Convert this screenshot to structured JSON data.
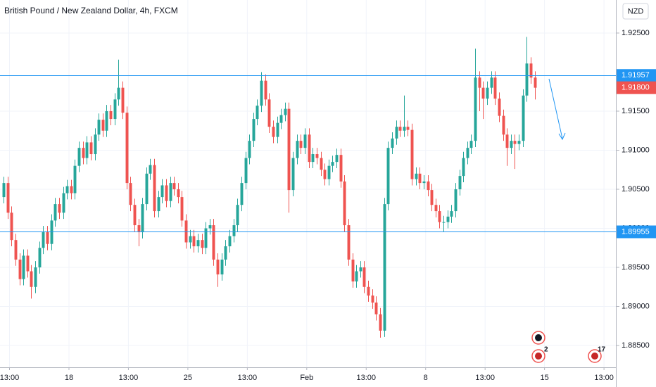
{
  "chart_data": {
    "type": "candlestick",
    "title": "British Pound / New Zealand Dollar, 4h, FXCM",
    "currency": "NZD",
    "up_color": "#26a69a",
    "down_color": "#ef5350",
    "grid": true,
    "ylim": [
      1.88221,
      1.92923
    ],
    "yticks": [
      {
        "value": 1.885,
        "label": "1.88500"
      },
      {
        "value": 1.89,
        "label": "1.89000"
      },
      {
        "value": 1.895,
        "label": "1.89500"
      },
      {
        "value": 1.9,
        "label": "1.90000"
      },
      {
        "value": 1.905,
        "label": "1.90500"
      },
      {
        "value": 1.91,
        "label": "1.91000"
      },
      {
        "value": 1.915,
        "label": "1.91500"
      },
      {
        "value": 1.925,
        "label": "1.92500"
      }
    ],
    "xlim": [
      -0.9,
      154.5
    ],
    "xticks": [
      {
        "value": 1.5,
        "label": "13:00"
      },
      {
        "value": 16.5,
        "label": "18"
      },
      {
        "value": 31.5,
        "label": "13:00"
      },
      {
        "value": 46.5,
        "label": "25"
      },
      {
        "value": 61.5,
        "label": "13:00"
      },
      {
        "value": 76.5,
        "label": "Feb"
      },
      {
        "value": 91.5,
        "label": "13:00"
      },
      {
        "value": 106.5,
        "label": "8"
      },
      {
        "value": 121.5,
        "label": "13:00"
      },
      {
        "value": 136.5,
        "label": "15"
      },
      {
        "value": 151.5,
        "label": "13:00"
      }
    ],
    "levels": [
      {
        "value": 1.91957,
        "label": "1.91957",
        "color": "#2196f3"
      },
      {
        "value": 1.89955,
        "label": "1.89955",
        "color": "#2196f3"
      }
    ],
    "last_price": {
      "value": 1.918,
      "label": "1.91800",
      "color": "#ef5350"
    },
    "events": [
      {
        "label": "2"
      },
      {
        "label": "17"
      }
    ],
    "open": [
      1.904,
      1.9058,
      1.902,
      1.8985,
      1.896,
      1.8935,
      1.8965,
      1.8945,
      1.8925,
      1.895,
      1.8975,
      1.8995,
      1.898,
      1.901,
      1.9031,
      1.902,
      1.9045,
      1.9054,
      1.9045,
      1.908,
      1.9103,
      1.909,
      1.911,
      1.9095,
      1.912,
      1.9139,
      1.9125,
      1.915,
      1.914,
      1.9165,
      1.918,
      1.9148,
      1.9058,
      1.903,
      1.9004,
      1.8995,
      1.9031,
      1.907,
      1.9081,
      1.9022,
      1.904,
      1.9055,
      1.9035,
      1.9058,
      1.905,
      1.904,
      1.901,
      1.8982,
      1.899,
      1.8977,
      1.8985,
      1.8975,
      1.9,
      1.9004,
      1.896,
      1.8941,
      1.896,
      1.8977,
      1.899,
      1.9004,
      1.903,
      1.9058,
      1.909,
      1.9112,
      1.914,
      1.9157,
      1.9189,
      1.9165,
      1.913,
      1.9117,
      1.9135,
      1.9145,
      1.9153,
      1.9049,
      1.909,
      1.9112,
      1.9103,
      1.912,
      1.9085,
      1.9095,
      1.909,
      1.9075,
      1.9063,
      1.908,
      1.9085,
      1.9094,
      1.906,
      1.9004,
      1.896,
      1.8932,
      1.8945,
      1.895,
      1.8925,
      1.8914,
      1.8905,
      1.889,
      1.8869,
      1.9031,
      1.9103,
      1.9115,
      1.913,
      1.9125,
      1.913,
      1.9126,
      1.9063,
      1.907,
      1.9058,
      1.906,
      1.9049,
      1.903,
      1.9022,
      1.9008,
      1.9008,
      1.9015,
      1.9022,
      1.905,
      1.9067,
      1.909,
      1.9103,
      1.9112,
      1.9193,
      1.918,
      1.9166,
      1.918,
      1.9193,
      1.9166,
      1.9144,
      1.912,
      1.9103,
      1.9112,
      1.9108,
      1.9112,
      1.917,
      1.9211,
      1.9193
    ],
    "high": [
      1.9066,
      1.9066,
      1.9028,
      1.8993,
      1.8968,
      1.8973,
      1.8973,
      1.8953,
      1.8958,
      1.8983,
      1.9003,
      1.9003,
      1.9018,
      1.9039,
      1.9039,
      1.9053,
      1.9062,
      1.9062,
      1.9088,
      1.9111,
      1.9111,
      1.9118,
      1.9118,
      1.9128,
      1.9147,
      1.9147,
      1.9158,
      1.9158,
      1.9173,
      1.9216,
      1.9188,
      1.9156,
      1.9066,
      1.9038,
      1.9012,
      1.9039,
      1.9078,
      1.9089,
      1.9089,
      1.9048,
      1.9063,
      1.9063,
      1.9066,
      1.9066,
      1.9058,
      1.9048,
      1.9018,
      1.8998,
      1.8998,
      1.8993,
      1.8993,
      1.9008,
      1.9012,
      1.9012,
      1.8968,
      1.8968,
      1.8985,
      1.8998,
      1.9012,
      1.9038,
      1.9066,
      1.9098,
      1.912,
      1.9148,
      1.9165,
      1.92,
      1.9197,
      1.9173,
      1.9138,
      1.9143,
      1.9153,
      1.9161,
      1.9161,
      1.9098,
      1.912,
      1.912,
      1.9128,
      1.9128,
      1.9103,
      1.9103,
      1.9098,
      1.9083,
      1.9088,
      1.9093,
      1.9102,
      1.9102,
      1.9068,
      1.9012,
      1.8968,
      1.8953,
      1.8958,
      1.8958,
      1.8933,
      1.8922,
      1.8913,
      1.8898,
      1.9039,
      1.9111,
      1.9123,
      1.9138,
      1.9138,
      1.917,
      1.9138,
      1.9134,
      1.9078,
      1.9078,
      1.9068,
      1.9068,
      1.9057,
      1.9038,
      1.903,
      1.9016,
      1.9023,
      1.903,
      1.9058,
      1.9075,
      1.9098,
      1.9111,
      1.912,
      1.923,
      1.9201,
      1.9188,
      1.9188,
      1.9201,
      1.9201,
      1.9174,
      1.9152,
      1.9128,
      1.912,
      1.912,
      1.912,
      1.9178,
      1.9245,
      1.9219,
      1.9201
    ],
    "low": [
      1.9032,
      1.9012,
      1.8977,
      1.8952,
      1.8927,
      1.8927,
      1.8937,
      1.891,
      1.8917,
      1.8942,
      1.8967,
      1.8972,
      1.8972,
      1.9002,
      1.9012,
      1.9012,
      1.9037,
      1.9037,
      1.9037,
      1.9072,
      1.9082,
      1.9082,
      1.9087,
      1.9087,
      1.9112,
      1.9117,
      1.9117,
      1.9132,
      1.9132,
      1.9157,
      1.914,
      1.905,
      1.9022,
      1.8996,
      1.8977,
      1.8987,
      1.9023,
      1.9062,
      1.9014,
      1.9014,
      1.9032,
      1.9027,
      1.9027,
      1.9042,
      1.9032,
      1.9002,
      1.8974,
      1.8974,
      1.8969,
      1.8969,
      1.8967,
      1.8967,
      1.8992,
      1.8952,
      1.8925,
      1.8933,
      1.8952,
      1.8969,
      1.8982,
      1.8996,
      1.9022,
      1.905,
      1.9082,
      1.9104,
      1.9132,
      1.9149,
      1.9157,
      1.9122,
      1.9109,
      1.9109,
      1.9127,
      1.9137,
      1.902,
      1.9041,
      1.9082,
      1.9095,
      1.9095,
      1.9077,
      1.9077,
      1.9082,
      1.9067,
      1.9055,
      1.9055,
      1.9072,
      1.9077,
      1.9052,
      1.8996,
      1.8952,
      1.8924,
      1.8924,
      1.8937,
      1.8917,
      1.8906,
      1.8897,
      1.8882,
      1.886,
      1.8861,
      1.9023,
      1.9095,
      1.9107,
      1.9117,
      1.9117,
      1.9118,
      1.9055,
      1.9055,
      1.905,
      1.905,
      1.9041,
      1.9022,
      1.9014,
      1.9,
      1.8995,
      1.9,
      1.9007,
      1.9014,
      1.9042,
      1.9059,
      1.9082,
      1.9095,
      1.9104,
      1.915,
      1.914,
      1.9158,
      1.9172,
      1.9158,
      1.9136,
      1.9112,
      1.908,
      1.9095,
      1.9076,
      1.91,
      1.9104,
      1.9162,
      1.9185,
      1.9165
    ],
    "close": [
      1.9058,
      1.902,
      1.8985,
      1.896,
      1.8935,
      1.8965,
      1.8945,
      1.8925,
      1.895,
      1.8975,
      1.8995,
      1.898,
      1.901,
      1.9031,
      1.902,
      1.9045,
      1.9054,
      1.9045,
      1.908,
      1.9103,
      1.909,
      1.911,
      1.9095,
      1.912,
      1.9139,
      1.9125,
      1.915,
      1.914,
      1.9165,
      1.918,
      1.9148,
      1.9058,
      1.903,
      1.9004,
      1.8995,
      1.9031,
      1.907,
      1.9081,
      1.9022,
      1.904,
      1.9055,
      1.9035,
      1.9058,
      1.905,
      1.904,
      1.901,
      1.8982,
      1.899,
      1.8977,
      1.8985,
      1.8975,
      1.9,
      1.9004,
      1.896,
      1.8941,
      1.896,
      1.8977,
      1.899,
      1.9004,
      1.903,
      1.9058,
      1.909,
      1.9112,
      1.914,
      1.9157,
      1.9189,
      1.9165,
      1.913,
      1.9117,
      1.9135,
      1.9145,
      1.9153,
      1.9049,
      1.909,
      1.9112,
      1.9103,
      1.912,
      1.9085,
      1.9095,
      1.909,
      1.9075,
      1.9063,
      1.908,
      1.9085,
      1.9094,
      1.906,
      1.9004,
      1.896,
      1.8932,
      1.8945,
      1.895,
      1.8925,
      1.8914,
      1.8905,
      1.889,
      1.8869,
      1.9031,
      1.9103,
      1.9115,
      1.913,
      1.9125,
      1.913,
      1.9126,
      1.9063,
      1.907,
      1.9058,
      1.906,
      1.9049,
      1.903,
      1.9022,
      1.9008,
      1.9008,
      1.9015,
      1.9022,
      1.905,
      1.9067,
      1.909,
      1.9103,
      1.9112,
      1.9193,
      1.918,
      1.9166,
      1.918,
      1.9193,
      1.9166,
      1.9144,
      1.912,
      1.9103,
      1.9112,
      1.9108,
      1.9112,
      1.917,
      1.9211,
      1.9193,
      1.918
    ]
  }
}
